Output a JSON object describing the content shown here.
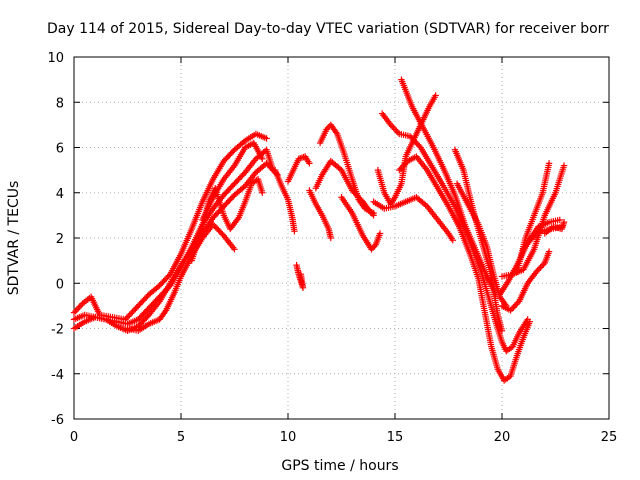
{
  "chart_data": {
    "type": "scatter",
    "title": "Day 114 of 2015, Sidereal Day-to-day VTEC variation (SDTVAR) for receiver borr",
    "xlabel": "GPS time / hours",
    "ylabel": "SDTVAR / TECUs",
    "xlim": [
      0,
      25
    ],
    "ylim": [
      -6,
      10
    ],
    "xticks": [
      0,
      5,
      10,
      15,
      20,
      25
    ],
    "yticks": [
      -6,
      -4,
      -2,
      0,
      2,
      4,
      6,
      8,
      10
    ],
    "grid": true,
    "marker": "+",
    "color": "#ff0000",
    "series": [
      {
        "points": [
          [
            0,
            -1.3
          ],
          [
            0.4,
            -0.9
          ],
          [
            0.8,
            -0.6
          ],
          [
            1.2,
            -1.4
          ],
          [
            1.8,
            -1.5
          ],
          [
            2.4,
            -1.6
          ],
          [
            3.0,
            -1.0
          ],
          [
            3.5,
            -0.5
          ],
          [
            4.0,
            -0.1
          ],
          [
            4.5,
            0.4
          ],
          [
            5.0,
            1.3
          ],
          [
            5.5,
            2.4
          ],
          [
            6.0,
            3.6
          ],
          [
            6.5,
            4.6
          ],
          [
            7.0,
            5.4
          ],
          [
            7.5,
            5.9
          ],
          [
            8.0,
            6.3
          ],
          [
            8.5,
            6.6
          ],
          [
            9.0,
            6.4
          ]
        ]
      },
      {
        "points": [
          [
            0,
            -1.6
          ],
          [
            0.5,
            -1.4
          ],
          [
            1.0,
            -1.5
          ],
          [
            1.5,
            -1.6
          ],
          [
            2.0,
            -1.7
          ],
          [
            2.5,
            -1.8
          ],
          [
            3.0,
            -1.6
          ],
          [
            3.5,
            -1.1
          ],
          [
            4.0,
            -0.6
          ],
          [
            4.5,
            -0.1
          ],
          [
            5.0,
            0.7
          ],
          [
            5.5,
            1.6
          ],
          [
            6.0,
            2.6
          ],
          [
            6.5,
            3.3
          ],
          [
            7.0,
            3.9
          ],
          [
            7.5,
            4.4
          ],
          [
            8.0,
            4.9
          ],
          [
            8.5,
            5.5
          ],
          [
            9.0,
            5.9
          ],
          [
            9.3,
            5.0
          ]
        ]
      },
      {
        "points": [
          [
            0,
            -2.0
          ],
          [
            0.5,
            -1.7
          ],
          [
            1.0,
            -1.5
          ],
          [
            1.5,
            -1.6
          ],
          [
            2.0,
            -1.9
          ],
          [
            2.5,
            -2.1
          ],
          [
            3.0,
            -1.9
          ],
          [
            3.5,
            -1.4
          ],
          [
            4.0,
            -0.8
          ],
          [
            4.5,
            0.0
          ],
          [
            5.0,
            0.8
          ],
          [
            5.5,
            1.5
          ],
          [
            6.0,
            2.2
          ],
          [
            6.5,
            2.9
          ],
          [
            7.0,
            3.4
          ],
          [
            7.5,
            3.9
          ],
          [
            8.0,
            4.3
          ],
          [
            8.5,
            4.9
          ],
          [
            9.0,
            5.3
          ],
          [
            9.5,
            4.8
          ]
        ]
      },
      {
        "points": [
          [
            2.5,
            -2.0
          ],
          [
            3.0,
            -2.1
          ],
          [
            3.5,
            -1.8
          ],
          [
            4.0,
            -1.6
          ],
          [
            4.3,
            -1.2
          ],
          [
            4.7,
            -0.4
          ],
          [
            5.0,
            0.3
          ],
          [
            5.5,
            1.2
          ],
          [
            6.0,
            2.0
          ],
          [
            6.5,
            2.6
          ],
          [
            7.0,
            2.1
          ],
          [
            7.5,
            1.5
          ]
        ]
      },
      {
        "points": [
          [
            5.5,
            1.0
          ],
          [
            6.0,
            2.5
          ],
          [
            6.3,
            3.6
          ],
          [
            6.6,
            4.2
          ],
          [
            7.0,
            3.0
          ],
          [
            7.3,
            2.4
          ],
          [
            7.7,
            2.9
          ],
          [
            8.0,
            3.6
          ],
          [
            8.3,
            4.4
          ],
          [
            8.6,
            4.6
          ],
          [
            8.8,
            4.0
          ]
        ]
      },
      {
        "points": [
          [
            6.0,
            2.8
          ],
          [
            6.5,
            3.8
          ],
          [
            7.0,
            4.6
          ],
          [
            7.5,
            5.2
          ],
          [
            8.0,
            6.0
          ],
          [
            8.4,
            6.2
          ],
          [
            8.8,
            5.5
          ]
        ]
      },
      {
        "points": [
          [
            9.4,
            5.0
          ],
          [
            9.7,
            4.3
          ],
          [
            10.0,
            3.7
          ],
          [
            10.2,
            2.9
          ],
          [
            10.3,
            2.3
          ]
        ]
      },
      {
        "points": [
          [
            10.0,
            4.5
          ],
          [
            10.5,
            5.5
          ],
          [
            10.8,
            5.6
          ],
          [
            11.0,
            5.3
          ]
        ]
      },
      {
        "points": [
          [
            10.4,
            0.8
          ],
          [
            10.5,
            0.4
          ],
          [
            10.6,
            0.1
          ],
          [
            10.7,
            -0.2
          ],
          [
            10.6,
            0.4
          ]
        ]
      },
      {
        "points": [
          [
            11.0,
            4.1
          ],
          [
            11.3,
            3.5
          ],
          [
            11.6,
            3.0
          ],
          [
            11.9,
            2.4
          ],
          [
            12.0,
            2.0
          ]
        ]
      },
      {
        "points": [
          [
            11.3,
            4.2
          ],
          [
            11.6,
            4.8
          ],
          [
            12.0,
            5.4
          ],
          [
            12.5,
            5.0
          ],
          [
            13.0,
            4.1
          ],
          [
            13.5,
            3.6
          ],
          [
            13.8,
            3.2
          ],
          [
            14.0,
            3.0
          ]
        ]
      },
      {
        "points": [
          [
            11.5,
            6.2
          ],
          [
            11.8,
            6.8
          ],
          [
            12.0,
            7.0
          ],
          [
            12.3,
            6.6
          ],
          [
            12.6,
            5.8
          ],
          [
            13.0,
            4.6
          ],
          [
            13.3,
            3.7
          ],
          [
            13.6,
            3.3
          ],
          [
            14.0,
            3.1
          ]
        ]
      },
      {
        "points": [
          [
            12.5,
            3.8
          ],
          [
            13.0,
            3.1
          ],
          [
            13.5,
            2.1
          ],
          [
            13.9,
            1.5
          ],
          [
            14.1,
            1.7
          ],
          [
            14.3,
            2.2
          ]
        ]
      },
      {
        "points": [
          [
            14.0,
            3.6
          ],
          [
            14.5,
            3.3
          ],
          [
            15.0,
            3.4
          ],
          [
            15.5,
            3.6
          ],
          [
            16.0,
            3.8
          ],
          [
            16.5,
            3.4
          ],
          [
            17.0,
            2.8
          ],
          [
            17.5,
            2.2
          ],
          [
            17.7,
            1.9
          ]
        ]
      },
      {
        "points": [
          [
            14.2,
            5.0
          ],
          [
            14.5,
            4.0
          ],
          [
            14.8,
            3.5
          ],
          [
            15.0,
            3.8
          ],
          [
            15.3,
            4.4
          ],
          [
            15.5,
            5.6
          ],
          [
            15.8,
            6.2
          ],
          [
            16.2,
            7.0
          ],
          [
            16.6,
            7.8
          ],
          [
            16.9,
            8.3
          ]
        ]
      },
      {
        "points": [
          [
            14.4,
            7.5
          ],
          [
            14.8,
            7.0
          ],
          [
            15.2,
            6.6
          ],
          [
            15.7,
            6.5
          ],
          [
            16.2,
            6.0
          ],
          [
            16.7,
            5.2
          ],
          [
            17.2,
            4.4
          ],
          [
            17.8,
            3.4
          ],
          [
            18.4,
            2.1
          ],
          [
            19.0,
            0.6
          ],
          [
            19.4,
            -0.7
          ],
          [
            19.7,
            -1.7
          ],
          [
            20.0,
            -2.6
          ],
          [
            20.2,
            -3.0
          ],
          [
            20.5,
            -2.8
          ],
          [
            20.8,
            -2.2
          ],
          [
            21.2,
            -1.6
          ]
        ]
      },
      {
        "points": [
          [
            15.3,
            9.0
          ],
          [
            15.8,
            7.8
          ],
          [
            16.3,
            6.9
          ],
          [
            16.8,
            6.0
          ],
          [
            17.3,
            5.0
          ],
          [
            17.8,
            3.9
          ],
          [
            18.3,
            2.5
          ],
          [
            18.8,
            1.4
          ],
          [
            19.2,
            0.5
          ],
          [
            19.6,
            -0.3
          ],
          [
            19.8,
            -1.4
          ],
          [
            20.0,
            -2.1
          ]
        ]
      },
      {
        "points": [
          [
            15.2,
            5.0
          ],
          [
            15.6,
            5.4
          ],
          [
            16.0,
            5.6
          ],
          [
            16.5,
            5.0
          ],
          [
            17.0,
            4.2
          ],
          [
            17.5,
            3.4
          ],
          [
            18.0,
            2.5
          ],
          [
            18.5,
            1.3
          ],
          [
            18.9,
            0.2
          ],
          [
            19.2,
            -1.3
          ],
          [
            19.5,
            -2.8
          ],
          [
            19.8,
            -3.8
          ],
          [
            20.1,
            -4.3
          ],
          [
            20.4,
            -4.1
          ],
          [
            20.7,
            -3.2
          ],
          [
            21.0,
            -2.4
          ],
          [
            21.3,
            -1.7
          ]
        ]
      },
      {
        "points": [
          [
            17.8,
            5.9
          ],
          [
            18.2,
            5.0
          ],
          [
            18.5,
            3.8
          ],
          [
            18.8,
            2.7
          ],
          [
            19.1,
            1.7
          ],
          [
            19.4,
            0.7
          ],
          [
            19.7,
            -0.5
          ]
        ]
      },
      {
        "points": [
          [
            17.9,
            4.4
          ],
          [
            18.4,
            3.5
          ],
          [
            18.9,
            2.6
          ],
          [
            19.3,
            1.6
          ],
          [
            19.6,
            0.4
          ],
          [
            19.9,
            -0.6
          ],
          [
            20.2,
            -1.0
          ]
        ]
      },
      {
        "points": [
          [
            20.0,
            -1.0
          ],
          [
            20.4,
            -1.2
          ],
          [
            20.8,
            -0.8
          ],
          [
            21.2,
            0.0
          ],
          [
            21.6,
            0.5
          ],
          [
            22.0,
            0.9
          ],
          [
            22.2,
            1.4
          ]
        ]
      },
      {
        "points": [
          [
            20.0,
            0.3
          ],
          [
            20.5,
            0.4
          ],
          [
            21.0,
            0.6
          ],
          [
            21.5,
            1.5
          ],
          [
            22.0,
            3.0
          ],
          [
            22.5,
            4.0
          ],
          [
            22.9,
            5.2
          ]
        ]
      },
      {
        "points": [
          [
            19.9,
            -0.5
          ],
          [
            20.3,
            0.1
          ],
          [
            20.7,
            0.8
          ],
          [
            21.2,
            1.8
          ],
          [
            21.7,
            2.5
          ],
          [
            22.2,
            2.7
          ],
          [
            22.7,
            2.8
          ]
        ]
      },
      {
        "points": [
          [
            21.0,
            1.5
          ],
          [
            21.4,
            2.0
          ],
          [
            21.8,
            2.3
          ],
          [
            22.3,
            2.4
          ],
          [
            22.8,
            2.5
          ]
        ]
      },
      {
        "points": [
          [
            20.7,
            0.5
          ],
          [
            21.1,
            2.0
          ],
          [
            21.5,
            3.0
          ],
          [
            21.9,
            4.0
          ],
          [
            22.2,
            5.3
          ]
        ]
      },
      {
        "points": [
          [
            22.0,
            2.2
          ],
          [
            22.4,
            2.5
          ],
          [
            22.8,
            2.4
          ],
          [
            22.9,
            2.7
          ]
        ]
      }
    ]
  }
}
